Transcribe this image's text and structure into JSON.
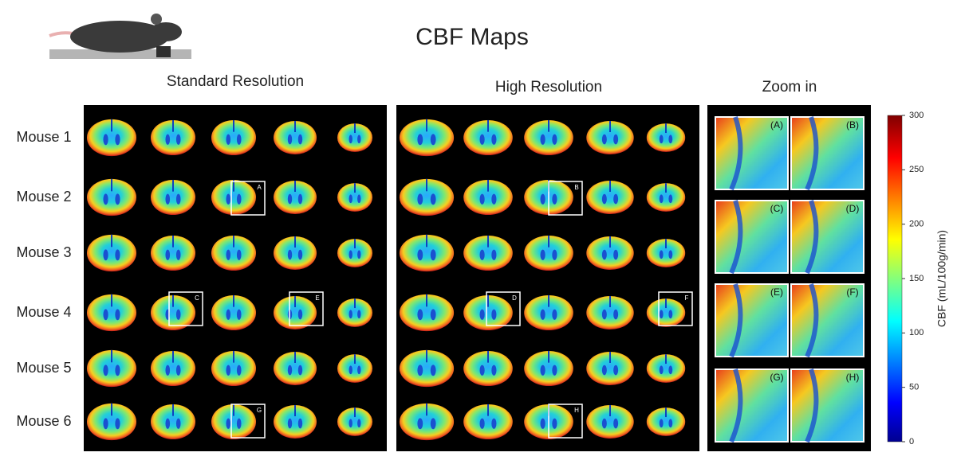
{
  "title": "CBF Maps",
  "panels": [
    {
      "title": "Standard Resolution",
      "boxes": [
        "A",
        "C",
        "E",
        "G"
      ]
    },
    {
      "title": "High Resolution",
      "boxes": [
        "B",
        "D",
        "F",
        "H"
      ]
    },
    {
      "title": "Zoom in",
      "tiles": [
        "(A)",
        "(B)",
        "(C)",
        "(D)",
        "(E)",
        "(F)",
        "(G)",
        "(H)"
      ]
    }
  ],
  "rows": [
    "Mouse 1",
    "Mouse 2",
    "Mouse 3",
    "Mouse 4",
    "Mouse 5",
    "Mouse 6"
  ],
  "colorbar": {
    "label": "CBF (mL/100g/min)",
    "lim": [
      0,
      300
    ],
    "ticks": [
      0,
      50,
      100,
      150,
      200,
      250,
      300
    ]
  }
}
